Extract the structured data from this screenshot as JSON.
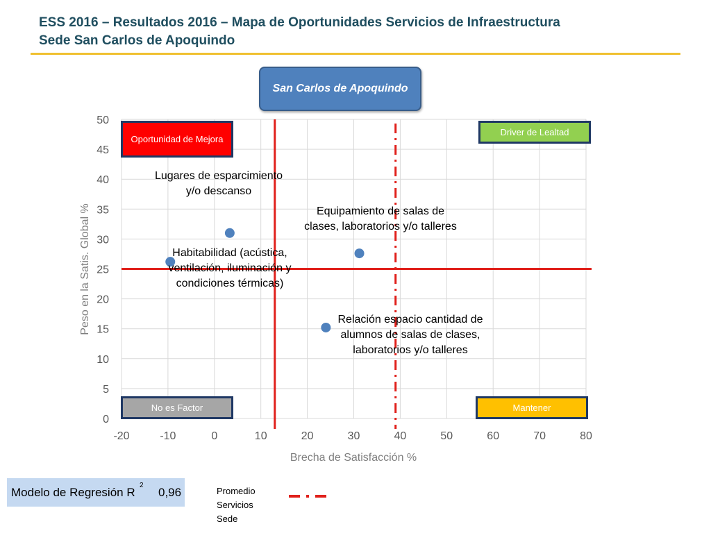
{
  "header": {
    "title_line1": "ESS 2016 – Resultados 2016 – Mapa de Oportunidades Servicios de Infraestructura",
    "title_line2": "Sede San Carlos de Apoquindo"
  },
  "site_label": "San Carlos de Apoquindo",
  "quadrants": {
    "top_left": "Oportunidad de Mejora",
    "top_right": "Driver de Lealtad",
    "bottom_left": "No es Factor",
    "bottom_right": "Mantener"
  },
  "regression": {
    "label": "Modelo de Regresión R",
    "superscript": "2",
    "value": "0,96"
  },
  "legend": {
    "promedio_label": "Promedio\nServicios\nSede"
  },
  "colors": {
    "point": "#4f81bd",
    "reference_line": "#e0201b",
    "title": "#1f4e5f",
    "title_rule": "#f0c030"
  },
  "chart_data": {
    "type": "scatter",
    "xlabel": "Brecha de Satisfacción %",
    "ylabel": "Peso en la Satis. Global %",
    "xlim": [
      -20,
      80
    ],
    "ylim": [
      0,
      50
    ],
    "x_ticks": [
      "-20",
      "-10",
      "0",
      "10",
      "20",
      "30",
      "40",
      "50",
      "60",
      "70",
      "80"
    ],
    "y_ticks": [
      "0",
      "5",
      "10",
      "15",
      "20",
      "25",
      "30",
      "35",
      "40",
      "45",
      "50"
    ],
    "grid": true,
    "points": [
      {
        "label": "Lugares de esparcimiento y/o descanso",
        "x": 3.3,
        "y": 31.0
      },
      {
        "label": "Habitabilidad (acústica, ventilación, iluminación y condiciones térmicas)",
        "x": -9.5,
        "y": 26.2
      },
      {
        "label": "Equipamiento de salas de clases, laboratorios y/o talleres",
        "x": 31.2,
        "y": 27.6
      },
      {
        "label": "Relación espacio cantidad de alumnos de salas de clases, laboratorios y/o talleres",
        "x": 24.0,
        "y": 15.2
      }
    ],
    "reference_lines": {
      "vertical_solid_x": 13.0,
      "horizontal_solid_y": 25.0,
      "vertical_dashdot_x": 39.0
    }
  }
}
